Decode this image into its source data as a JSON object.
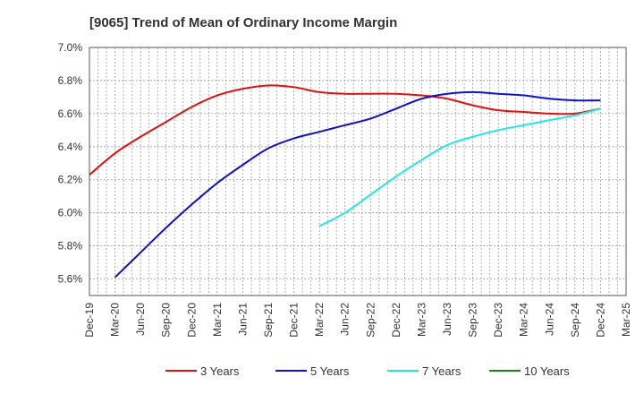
{
  "chart_data": {
    "type": "line",
    "title": "[9065]  Trend of Mean of Ordinary Income Margin",
    "xlabel": "",
    "ylabel": "",
    "ylim": [
      5.5,
      7.0
    ],
    "yticks": [
      "5.6%",
      "5.8%",
      "6.0%",
      "6.2%",
      "6.4%",
      "6.6%",
      "6.8%",
      "7.0%"
    ],
    "ytick_values": [
      5.6,
      5.8,
      6.0,
      6.2,
      6.4,
      6.6,
      6.8,
      7.0
    ],
    "categories": [
      "Dec-19",
      "Mar-20",
      "Jun-20",
      "Sep-20",
      "Dec-20",
      "Mar-21",
      "Jun-21",
      "Sep-21",
      "Dec-21",
      "Mar-22",
      "Jun-22",
      "Sep-22",
      "Dec-22",
      "Mar-23",
      "Jun-23",
      "Sep-23",
      "Dec-23",
      "Mar-24",
      "Jun-24",
      "Sep-24",
      "Dec-24",
      "Mar-25"
    ],
    "grid": true,
    "legend_position": "bottom",
    "series": [
      {
        "name": "3 Years",
        "color": "#dd1111",
        "values": [
          6.23,
          6.36,
          6.46,
          6.55,
          6.64,
          6.71,
          6.75,
          6.77,
          6.76,
          6.73,
          6.72,
          6.72,
          6.72,
          6.71,
          6.69,
          6.65,
          6.62,
          6.61,
          6.6,
          6.6,
          6.63,
          null
        ]
      },
      {
        "name": "5 Years",
        "color": "#1111cc",
        "values": [
          null,
          5.61,
          5.76,
          5.91,
          6.05,
          6.18,
          6.29,
          6.39,
          6.45,
          6.49,
          6.53,
          6.57,
          6.63,
          6.69,
          6.72,
          6.73,
          6.72,
          6.71,
          6.69,
          6.68,
          6.68,
          null
        ]
      },
      {
        "name": "7 Years",
        "color": "#22e6e6",
        "values": [
          null,
          null,
          null,
          null,
          null,
          null,
          null,
          null,
          null,
          5.92,
          6.0,
          6.11,
          6.22,
          6.32,
          6.41,
          6.46,
          6.5,
          6.53,
          6.56,
          6.59,
          6.63,
          null
        ]
      },
      {
        "name": "10 Years",
        "color": "#118811",
        "values": [
          null,
          null,
          null,
          null,
          null,
          null,
          null,
          null,
          null,
          null,
          null,
          null,
          null,
          null,
          null,
          null,
          null,
          null,
          null,
          null,
          null,
          null
        ]
      }
    ]
  }
}
